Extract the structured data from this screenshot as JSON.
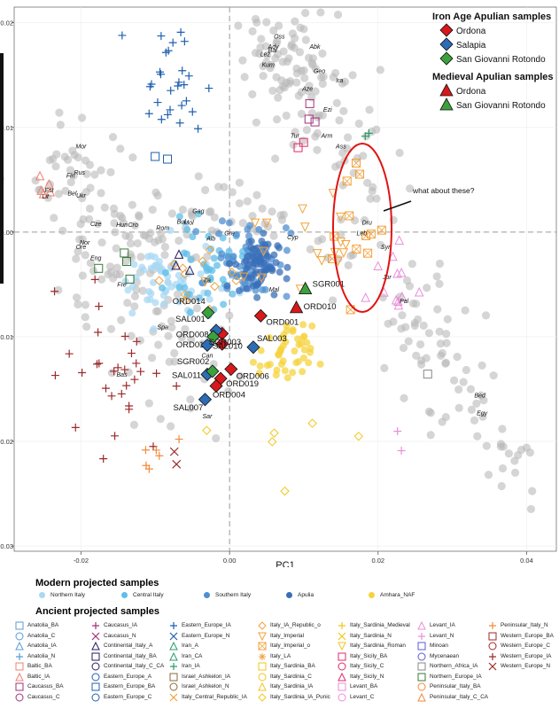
{
  "chart_data": {
    "type": "scatter",
    "xlabel": "PC1",
    "ylabel": "",
    "xlim": [
      -0.029,
      0.044
    ],
    "ylim": [
      -0.0305,
      0.0215
    ],
    "x_ticks": [
      -0.02,
      0.0,
      0.02,
      0.04
    ],
    "x_tick_labels": [
      "-0.02",
      "0.00",
      "0.02",
      "0.04"
    ],
    "y_ticks": [
      0.02,
      0.01,
      0.0,
      -0.01,
      -0.02,
      -0.03
    ],
    "y_tick_labels": [
      "0.02",
      "0.01",
      "0.00",
      "-0.01",
      "-0.02",
      "-0.03"
    ],
    "grid": true,
    "annotation": "what about these?",
    "apulian_legend": {
      "iron_age_title": "Iron Age Apulian samples",
      "iron_age_items": [
        {
          "label": "Ordona",
          "color": "#d7191c",
          "shape": "diamond"
        },
        {
          "label": "Salapia",
          "color": "#2c6db5",
          "shape": "diamond"
        },
        {
          "label": "San Giovanni Rotondo",
          "color": "#3ca13c",
          "shape": "diamond"
        }
      ],
      "medieval_title": "Medieval Apulian samples",
      "medieval_items": [
        {
          "label": "Ordona",
          "color": "#d7191c",
          "shape": "triangle"
        },
        {
          "label": "San Giovanni Rotondo",
          "color": "#3ca13c",
          "shape": "triangle"
        }
      ]
    },
    "iron_age_points": [
      {
        "label": "ORD001",
        "x": 0.0042,
        "y": -0.008,
        "pop": "Ordona"
      },
      {
        "label": "ORD006",
        "x": 0.0002,
        "y": -0.0131,
        "pop": "Ordona"
      },
      {
        "label": "ORD008",
        "x": -0.001,
        "y": -0.0097,
        "pop": "Ordona"
      },
      {
        "label": "ORD011",
        "x": -0.001,
        "y": -0.0107,
        "pop": "Ordona"
      },
      {
        "label": "ORD019",
        "x": -0.0012,
        "y": -0.014,
        "pop": "Ordona"
      },
      {
        "label": "ORD004",
        "x": -0.0018,
        "y": -0.0147,
        "pop": "Ordona"
      },
      {
        "label": "SAL001",
        "x": -0.0018,
        "y": -0.0094,
        "pop": "Salapia"
      },
      {
        "label": "SAL003",
        "x": 0.0032,
        "y": -0.011,
        "pop": "Salapia"
      },
      {
        "label": "SAL010",
        "x": -0.003,
        "y": -0.0108,
        "pop": "Salapia"
      },
      {
        "label": "SAL011",
        "x": -0.003,
        "y": -0.0136,
        "pop": "Salapia"
      },
      {
        "label": "SAL007",
        "x": -0.0033,
        "y": -0.016,
        "pop": "Salapia"
      },
      {
        "label": "SGR003",
        "x": -0.0022,
        "y": -0.01,
        "pop": "San Giovanni Rotondo"
      },
      {
        "label": "SGR002",
        "x": -0.0023,
        "y": -0.0133,
        "pop": "San Giovanni Rotondo"
      },
      {
        "label": "ORD014",
        "x": -0.0029,
        "y": -0.0077,
        "pop": "San Giovanni Rotondo"
      }
    ],
    "medieval_points": [
      {
        "label": "ORD010",
        "x": 0.009,
        "y": -0.0072,
        "pop": "Ordona"
      },
      {
        "label": "SGR001",
        "x": 0.0102,
        "y": -0.0054,
        "pop": "San Giovanni Rotondo"
      }
    ],
    "population_labels": [
      {
        "text": "Oss",
        "x": 0.0067,
        "y": 0.0185
      },
      {
        "text": "Ady",
        "x": 0.0059,
        "y": 0.0175
      },
      {
        "text": "Bal",
        "x": 0.0058,
        "y": 0.0172
      },
      {
        "text": "Lez",
        "x": 0.0048,
        "y": 0.0168
      },
      {
        "text": "Kum",
        "x": 0.0052,
        "y": 0.0158
      },
      {
        "text": "Abk",
        "x": 0.0115,
        "y": 0.0175
      },
      {
        "text": "Geo",
        "x": 0.0121,
        "y": 0.0152
      },
      {
        "text": "Aze",
        "x": 0.0105,
        "y": 0.0135
      },
      {
        "text": "Ira",
        "x": 0.0148,
        "y": 0.0143
      },
      {
        "text": "Ezi",
        "x": 0.0132,
        "y": 0.0115
      },
      {
        "text": "Arm",
        "x": 0.0131,
        "y": 0.009
      },
      {
        "text": "Ass",
        "x": 0.015,
        "y": 0.008
      },
      {
        "text": "Tur",
        "x": 0.0088,
        "y": 0.009
      },
      {
        "text": "Mor",
        "x": -0.02,
        "y": 0.008
      },
      {
        "text": "Rus",
        "x": -0.0202,
        "y": 0.0055
      },
      {
        "text": "Fin",
        "x": -0.0214,
        "y": 0.0052
      },
      {
        "text": "Est",
        "x": -0.0243,
        "y": 0.0038
      },
      {
        "text": "Lit",
        "x": -0.0248,
        "y": 0.0032
      },
      {
        "text": "Bel",
        "x": -0.0212,
        "y": 0.0035
      },
      {
        "text": "Ukr",
        "x": -0.02,
        "y": 0.0033
      },
      {
        "text": "Gag",
        "x": -0.0042,
        "y": 0.0018
      },
      {
        "text": "Hun",
        "x": -0.0145,
        "y": 0.0005
      },
      {
        "text": "Cro",
        "x": -0.013,
        "y": 0.0005
      },
      {
        "text": "Bul",
        "x": -0.0065,
        "y": 0.0008
      },
      {
        "text": "Mol",
        "x": -0.0055,
        "y": 0.0007
      },
      {
        "text": "Rom",
        "x": -0.009,
        "y": 0.0002
      },
      {
        "text": "Cze",
        "x": -0.018,
        "y": 0.0006
      },
      {
        "text": "Nor",
        "x": -0.0195,
        "y": -0.0012
      },
      {
        "text": "Ore",
        "x": -0.02,
        "y": -0.0016
      },
      {
        "text": "Eng",
        "x": -0.018,
        "y": -0.0027
      },
      {
        "text": "Fre",
        "x": -0.0145,
        "y": -0.0052
      },
      {
        "text": "Alb",
        "x": -0.0025,
        "y": -0.0008
      },
      {
        "text": "Gre",
        "x": 0.0,
        "y": -0.0003
      },
      {
        "text": "Ita",
        "x": -0.003,
        "y": -0.0048
      },
      {
        "text": "Mal",
        "x": 0.006,
        "y": -0.0057
      },
      {
        "text": "Cyp",
        "x": 0.0085,
        "y": -0.0007
      },
      {
        "text": "Dru",
        "x": 0.0185,
        "y": 0.0007
      },
      {
        "text": "Leb",
        "x": 0.0178,
        "y": -0.0003
      },
      {
        "text": "Syr",
        "x": 0.021,
        "y": -0.0016
      },
      {
        "text": "Jor",
        "x": 0.0212,
        "y": -0.0045
      },
      {
        "text": "Pal",
        "x": 0.0235,
        "y": -0.0068
      },
      {
        "text": "Spa",
        "x": -0.009,
        "y": -0.0093
      },
      {
        "text": "Can",
        "x": -0.003,
        "y": -0.012
      },
      {
        "text": "Sar",
        "x": -0.003,
        "y": -0.0178
      },
      {
        "text": "Bas",
        "x": -0.0145,
        "y": -0.0138
      },
      {
        "text": "Bed",
        "x": 0.0337,
        "y": -0.0158
      },
      {
        "text": "Egy",
        "x": 0.034,
        "y": -0.0175
      }
    ],
    "modern_legend": {
      "title": "Modern projected samples",
      "items": [
        {
          "label": "Northern Italy",
          "color": "#a8d8f4"
        },
        {
          "label": "Central Italy",
          "color": "#5fbde8"
        },
        {
          "label": "Southern Italy",
          "color": "#4f8fd0"
        },
        {
          "label": "Apulia",
          "color": "#3a6fb8"
        },
        {
          "label": "Amhara_NAF",
          "color": "#f6d33c"
        }
      ]
    },
    "ancient_legend": {
      "title": "Ancient projected samples",
      "items": [
        {
          "label": "Anatolia_BA",
          "shape": "square",
          "color": "#5b9bd5"
        },
        {
          "label": "Anatolia_C",
          "shape": "circle",
          "color": "#5b9bd5"
        },
        {
          "label": "Anatolia_IA",
          "shape": "triangle",
          "color": "#5b9bd5"
        },
        {
          "label": "Anatolia_N",
          "shape": "plus",
          "color": "#5b9bd5"
        },
        {
          "label": "Baltic_BA",
          "shape": "square",
          "color": "#f08070"
        },
        {
          "label": "Baltic_IA",
          "shape": "triangle",
          "color": "#f08070"
        },
        {
          "label": "Caucasus_BA",
          "shape": "square",
          "color": "#a0327a"
        },
        {
          "label": "Caucasus_C",
          "shape": "circle",
          "color": "#a0327a"
        },
        {
          "label": "Caucasus_IA",
          "shape": "plus",
          "color": "#a0327a"
        },
        {
          "label": "Caucasus_N",
          "shape": "cross",
          "color": "#a0327a"
        },
        {
          "label": "Continental_Italy_A",
          "shape": "triangle",
          "color": "#2b1a5e"
        },
        {
          "label": "Continental_Italy_BA",
          "shape": "square",
          "color": "#2b1a5e"
        },
        {
          "label": "Continental_Italy_C_CA",
          "shape": "circle",
          "color": "#2b1a5e"
        },
        {
          "label": "Eastern_Europe_A",
          "shape": "circle",
          "color": "#1f5fb0"
        },
        {
          "label": "Eastern_Europe_BA",
          "shape": "square",
          "color": "#1f5fb0"
        },
        {
          "label": "Eastern_Europe_C",
          "shape": "circle",
          "color": "#1f5fb0"
        },
        {
          "label": "Eastern_Europe_IA",
          "shape": "plus",
          "color": "#1f5fb0"
        },
        {
          "label": "Eastern_Europe_N",
          "shape": "cross",
          "color": "#1f5fb0"
        },
        {
          "label": "Iran_A",
          "shape": "triangle",
          "color": "#2a9d6a"
        },
        {
          "label": "Iran_CA",
          "shape": "triangle",
          "color": "#2a9d6a"
        },
        {
          "label": "Iran_IA",
          "shape": "plus",
          "color": "#2a9d6a"
        },
        {
          "label": "Israel_Ashkelon_IA",
          "shape": "square",
          "color": "#8c6a3c"
        },
        {
          "label": "Israel_Ashkelon_N",
          "shape": "circle",
          "color": "#8c6a3c"
        },
        {
          "label": "Italy_Central_Republic_IA",
          "shape": "cross",
          "color": "#f2a23a"
        },
        {
          "label": "Italy_IA_Republic_o",
          "shape": "diamond",
          "color": "#f2a23a"
        },
        {
          "label": "Italy_Imperial",
          "shape": "triangle-down",
          "color": "#f2a23a"
        },
        {
          "label": "Italy_Imperial_o",
          "shape": "square-x",
          "color": "#f2a23a"
        },
        {
          "label": "Italy_LA",
          "shape": "star",
          "color": "#f2a23a"
        },
        {
          "label": "Italy_Sardinia_BA",
          "shape": "square",
          "color": "#f2c61e"
        },
        {
          "label": "Italy_Sardinia_C",
          "shape": "circle",
          "color": "#f2c61e"
        },
        {
          "label": "Italy_Sardinia_IA",
          "shape": "triangle",
          "color": "#f2c61e"
        },
        {
          "label": "Italy_Sardinia_IA_Punic",
          "shape": "diamond",
          "color": "#f2c61e"
        },
        {
          "label": "Italy_Sardinia_Medieval",
          "shape": "plus",
          "color": "#f2c61e"
        },
        {
          "label": "Italy_Sardinia_N",
          "shape": "cross",
          "color": "#f2c61e"
        },
        {
          "label": "Italy_Sardinia_Roman",
          "shape": "triangle-down",
          "color": "#f2c61e"
        },
        {
          "label": "Italy_Sicily_BA",
          "shape": "square",
          "color": "#e0286b"
        },
        {
          "label": "Italy_Sicily_C",
          "shape": "circle",
          "color": "#e0286b"
        },
        {
          "label": "Italy_Sicily_N",
          "shape": "triangle",
          "color": "#e0286b"
        },
        {
          "label": "Levant_BA",
          "shape": "square",
          "color": "#e98fd8"
        },
        {
          "label": "Levant_C",
          "shape": "circle",
          "color": "#e98fd8"
        },
        {
          "label": "Levant_IA",
          "shape": "triangle",
          "color": "#e98fd8"
        },
        {
          "label": "Levant_N",
          "shape": "plus",
          "color": "#e98fd8"
        },
        {
          "label": "Minoan",
          "shape": "square",
          "color": "#5a5adc"
        },
        {
          "label": "Mycenaean",
          "shape": "circle",
          "color": "#5a5adc"
        },
        {
          "label": "Northern_Africa_IA",
          "shape": "square",
          "color": "#888888"
        },
        {
          "label": "Northern_Europe_IA",
          "shape": "square",
          "color": "#3a7a3a"
        },
        {
          "label": "Peninsular_Italy_BA",
          "shape": "circle",
          "color": "#f28a3a"
        },
        {
          "label": "Peninsular_Italy_C_CA",
          "shape": "triangle",
          "color": "#f28a3a"
        },
        {
          "label": "Peninsular_Italy_N",
          "shape": "plus",
          "color": "#f28a3a"
        },
        {
          "label": "Western_Europe_BA",
          "shape": "square",
          "color": "#9c2a2a"
        },
        {
          "label": "Western_Europe_C",
          "shape": "circle",
          "color": "#9c2a2a"
        },
        {
          "label": "Western_Europe_IA",
          "shape": "plus",
          "color": "#9c2a2a"
        },
        {
          "label": "Western_Europe_N",
          "shape": "cross",
          "color": "#9c2a2a"
        }
      ]
    }
  }
}
